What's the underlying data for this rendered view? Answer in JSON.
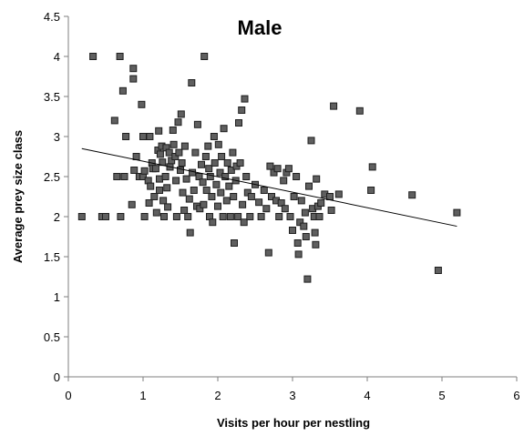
{
  "chart_data": {
    "type": "scatter",
    "title": "Male",
    "xlabel": "Visits per hour per nestling",
    "ylabel": "Average prey size class",
    "xlim": [
      0,
      6
    ],
    "ylim": [
      0,
      4.5
    ],
    "x_ticks": [
      "0",
      "1",
      "2",
      "3",
      "4",
      "5",
      "6"
    ],
    "y_ticks": [
      "0",
      "0.5",
      "1",
      "1.5",
      "2",
      "2.5",
      "3",
      "3.5",
      "4",
      "4.5"
    ],
    "grid": false,
    "legend": "none",
    "trendline": {
      "x": [
        0.18,
        5.2
      ],
      "y": [
        2.85,
        1.88
      ]
    },
    "marker_color": "#5f5f5f",
    "marker_edge_color": "#1f1f1f",
    "points": [
      [
        0.18,
        2.0
      ],
      [
        0.33,
        4.0
      ],
      [
        0.45,
        2.0
      ],
      [
        0.5,
        2.0
      ],
      [
        0.62,
        3.2
      ],
      [
        0.65,
        2.5
      ],
      [
        0.69,
        4.0
      ],
      [
        0.7,
        2.0
      ],
      [
        0.73,
        3.57
      ],
      [
        0.75,
        2.5
      ],
      [
        0.77,
        3.0
      ],
      [
        0.85,
        2.15
      ],
      [
        0.87,
        3.85
      ],
      [
        0.87,
        3.72
      ],
      [
        0.88,
        2.58
      ],
      [
        0.91,
        2.75
      ],
      [
        0.95,
        2.5
      ],
      [
        0.98,
        3.4
      ],
      [
        1.0,
        2.5
      ],
      [
        1.0,
        3.0
      ],
      [
        1.02,
        2.0
      ],
      [
        1.02,
        2.57
      ],
      [
        1.07,
        2.45
      ],
      [
        1.08,
        2.17
      ],
      [
        1.09,
        3.0
      ],
      [
        1.1,
        2.38
      ],
      [
        1.12,
        2.67
      ],
      [
        1.13,
        2.6
      ],
      [
        1.15,
        2.25
      ],
      [
        1.17,
        2.6
      ],
      [
        1.18,
        2.05
      ],
      [
        1.2,
        2.83
      ],
      [
        1.21,
        3.07
      ],
      [
        1.22,
        2.47
      ],
      [
        1.22,
        2.33
      ],
      [
        1.23,
        2.78
      ],
      [
        1.25,
        2.88
      ],
      [
        1.26,
        2.68
      ],
      [
        1.27,
        2.2
      ],
      [
        1.28,
        2.0
      ],
      [
        1.3,
        2.5
      ],
      [
        1.31,
        2.86
      ],
      [
        1.32,
        2.36
      ],
      [
        1.33,
        2.12
      ],
      [
        1.35,
        2.8
      ],
      [
        1.36,
        2.62
      ],
      [
        1.38,
        2.7
      ],
      [
        1.4,
        3.08
      ],
      [
        1.41,
        2.9
      ],
      [
        1.43,
        2.75
      ],
      [
        1.44,
        2.45
      ],
      [
        1.45,
        2.0
      ],
      [
        1.47,
        3.18
      ],
      [
        1.48,
        2.8
      ],
      [
        1.5,
        2.58
      ],
      [
        1.51,
        3.28
      ],
      [
        1.52,
        2.67
      ],
      [
        1.53,
        2.3
      ],
      [
        1.55,
        2.08
      ],
      [
        1.56,
        2.88
      ],
      [
        1.58,
        2.47
      ],
      [
        1.6,
        2.0
      ],
      [
        1.62,
        2.22
      ],
      [
        1.63,
        1.8
      ],
      [
        1.65,
        3.67
      ],
      [
        1.66,
        2.55
      ],
      [
        1.68,
        2.33
      ],
      [
        1.7,
        2.8
      ],
      [
        1.72,
        2.13
      ],
      [
        1.73,
        3.15
      ],
      [
        1.75,
        2.5
      ],
      [
        1.76,
        2.1
      ],
      [
        1.78,
        2.65
      ],
      [
        1.8,
        2.43
      ],
      [
        1.81,
        2.15
      ],
      [
        1.82,
        4.0
      ],
      [
        1.84,
        2.75
      ],
      [
        1.85,
        2.33
      ],
      [
        1.87,
        2.88
      ],
      [
        1.88,
        2.6
      ],
      [
        1.89,
        2.0
      ],
      [
        1.9,
        2.5
      ],
      [
        1.92,
        2.25
      ],
      [
        1.93,
        1.93
      ],
      [
        1.95,
        3.0
      ],
      [
        1.96,
        2.67
      ],
      [
        1.98,
        2.4
      ],
      [
        2.0,
        2.13
      ],
      [
        2.01,
        2.9
      ],
      [
        2.03,
        2.55
      ],
      [
        2.04,
        2.3
      ],
      [
        2.05,
        2.75
      ],
      [
        2.07,
        2.0
      ],
      [
        2.08,
        3.1
      ],
      [
        2.1,
        2.5
      ],
      [
        2.12,
        2.2
      ],
      [
        2.13,
        2.67
      ],
      [
        2.15,
        2.38
      ],
      [
        2.17,
        2.0
      ],
      [
        2.18,
        2.58
      ],
      [
        2.2,
        2.8
      ],
      [
        2.21,
        2.25
      ],
      [
        2.22,
        1.67
      ],
      [
        2.24,
        2.45
      ],
      [
        2.25,
        2.63
      ],
      [
        2.27,
        2.0
      ],
      [
        2.28,
        3.17
      ],
      [
        2.3,
        2.67
      ],
      [
        2.32,
        3.33
      ],
      [
        2.33,
        2.15
      ],
      [
        2.35,
        1.93
      ],
      [
        2.36,
        3.47
      ],
      [
        2.38,
        2.5
      ],
      [
        2.4,
        2.3
      ],
      [
        2.43,
        2.0
      ],
      [
        2.45,
        2.25
      ],
      [
        2.5,
        2.4
      ],
      [
        2.55,
        2.18
      ],
      [
        2.58,
        2.0
      ],
      [
        2.62,
        2.33
      ],
      [
        2.65,
        2.1
      ],
      [
        2.68,
        1.55
      ],
      [
        2.7,
        2.63
      ],
      [
        2.72,
        2.25
      ],
      [
        2.75,
        2.55
      ],
      [
        2.78,
        2.2
      ],
      [
        2.8,
        2.6
      ],
      [
        2.82,
        2.0
      ],
      [
        2.85,
        2.17
      ],
      [
        2.88,
        2.45
      ],
      [
        2.9,
        2.1
      ],
      [
        2.92,
        2.55
      ],
      [
        2.95,
        2.6
      ],
      [
        2.97,
        2.0
      ],
      [
        3.0,
        1.83
      ],
      [
        3.02,
        2.25
      ],
      [
        3.05,
        2.5
      ],
      [
        3.07,
        1.67
      ],
      [
        3.08,
        1.53
      ],
      [
        3.1,
        1.93
      ],
      [
        3.12,
        2.2
      ],
      [
        3.15,
        1.88
      ],
      [
        3.17,
        2.05
      ],
      [
        3.18,
        1.75
      ],
      [
        3.2,
        1.22
      ],
      [
        3.22,
        2.38
      ],
      [
        3.25,
        2.95
      ],
      [
        3.27,
        2.1
      ],
      [
        3.29,
        2.0
      ],
      [
        3.3,
        1.8
      ],
      [
        3.31,
        1.65
      ],
      [
        3.32,
        2.47
      ],
      [
        3.34,
        2.13
      ],
      [
        3.36,
        2.0
      ],
      [
        3.38,
        2.17
      ],
      [
        3.43,
        2.28
      ],
      [
        3.5,
        2.25
      ],
      [
        3.52,
        2.08
      ],
      [
        3.55,
        3.38
      ],
      [
        3.62,
        2.28
      ],
      [
        3.9,
        3.32
      ],
      [
        4.05,
        2.33
      ],
      [
        4.07,
        2.62
      ],
      [
        4.6,
        2.27
      ],
      [
        4.95,
        1.33
      ],
      [
        5.2,
        2.05
      ]
    ]
  }
}
